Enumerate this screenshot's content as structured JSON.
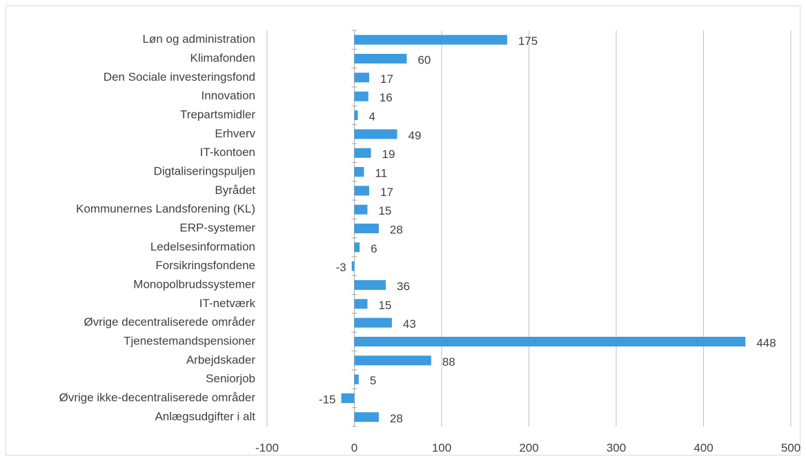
{
  "chart_data": {
    "type": "bar",
    "orientation": "horizontal",
    "categories": [
      "Løn og administration",
      "Klimafonden",
      "Den Sociale investeringsfond",
      "Innovation",
      "Trepartsmidler",
      "Erhverv",
      "IT-kontoen",
      "Digtaliseringspuljen",
      "Byrådet",
      "Kommunernes Landsforening (KL)",
      "ERP-systemer",
      "Ledelsesinformation",
      "Forsikringsfondene",
      "Monopolbrudssystemer",
      "IT-netværk",
      "Øvrige decentraliserede områder ",
      "Tjenestemandspensioner",
      "Arbejdskader",
      "Seniorjob",
      "Øvrige ikke-decentraliserede områder",
      "Anlægsudgifter i alt"
    ],
    "values": [
      175,
      60,
      17,
      16,
      4,
      49,
      19,
      11,
      17,
      15,
      28,
      6,
      -3,
      36,
      15,
      43,
      448,
      88,
      5,
      -15,
      28
    ],
    "color": "#3d9be0",
    "xlim": [
      -100,
      500
    ],
    "xticks": [
      -100,
      0,
      100,
      200,
      300,
      400,
      500
    ],
    "grid": true
  }
}
